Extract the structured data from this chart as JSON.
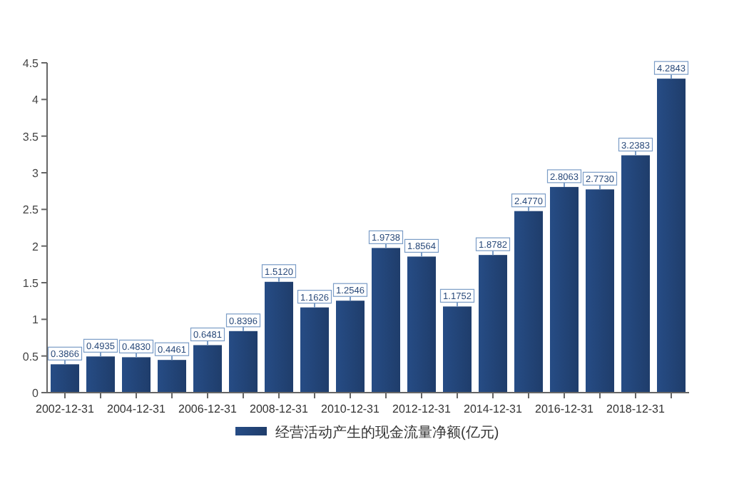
{
  "chart_data": {
    "type": "bar",
    "categories": [
      "2002-12-31",
      null,
      "2004-12-31",
      null,
      "2006-12-31",
      null,
      "2008-12-31",
      null,
      "2010-12-31",
      null,
      "2012-12-31",
      null,
      "2014-12-31",
      null,
      "2016-12-31",
      null,
      "2018-12-31",
      null
    ],
    "series": [
      {
        "name": "经营活动产生的现金流量净额(亿元)",
        "color": "#1f3d6b",
        "values": [
          0.3866,
          0.4935,
          0.483,
          0.4461,
          0.6481,
          0.8396,
          1.512,
          1.1626,
          1.2546,
          1.9738,
          1.8564,
          1.1752,
          1.8782,
          2.477,
          2.8063,
          2.773,
          3.2383,
          4.2843
        ],
        "value_labels": [
          "0.3866",
          "0.4935",
          "0.4830",
          "0.4461",
          "0.6481",
          "0.8396",
          "1.5120",
          "1.1626",
          "1.2546",
          "1.9738",
          "1.8564",
          "1.1752",
          "1.8782",
          "2.4770",
          "2.8063",
          "2.7730",
          "3.2383",
          "4.2843"
        ]
      }
    ],
    "ylim": [
      0,
      4.5
    ],
    "yticks": [
      0,
      0.5,
      1,
      1.5,
      2,
      2.5,
      3,
      3.5,
      4,
      4.5
    ],
    "grid": false,
    "legend": "bottom"
  }
}
